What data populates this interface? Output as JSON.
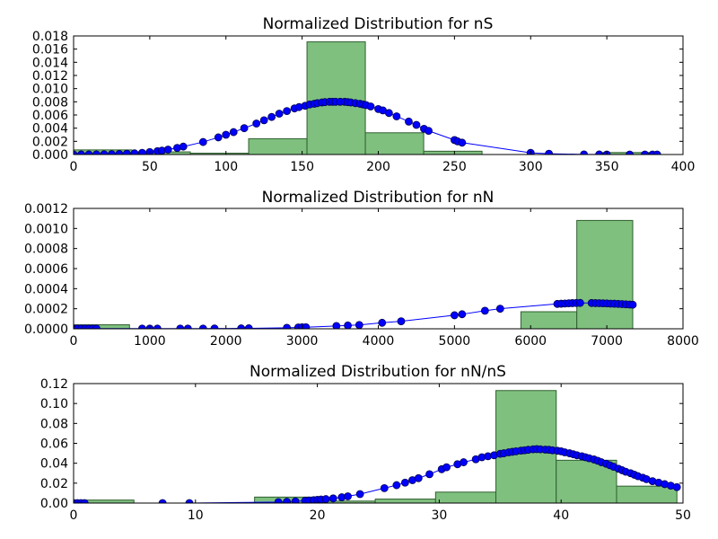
{
  "chart_data": [
    {
      "type": "bar",
      "title": "Normalized Distribution for nS",
      "xlabel": "",
      "ylabel": "",
      "xlim": [
        0,
        400
      ],
      "ylim": [
        0,
        0.018
      ],
      "xticks": [
        0,
        50,
        100,
        150,
        200,
        250,
        300,
        350,
        400
      ],
      "xtick_labels": [
        "0",
        "50",
        "100",
        "150",
        "200",
        "250",
        "300",
        "350",
        "400"
      ],
      "yticks": [
        0,
        0.002,
        0.004,
        0.006,
        0.008,
        0.01,
        0.012,
        0.014,
        0.016,
        0.018
      ],
      "ytick_labels": [
        "0.000",
        "0.002",
        "0.004",
        "0.006",
        "0.008",
        "0.010",
        "0.012",
        "0.014",
        "0.016",
        "0.018"
      ],
      "histogram": {
        "edges": [
          0,
          38.3,
          76.6,
          114.9,
          153.2,
          191.5,
          229.8,
          268.1,
          306.4,
          344.7,
          383
        ],
        "values": [
          0.0007,
          0.0004,
          0.0002,
          0.0024,
          0.0171,
          0.0033,
          0.0005,
          0.0,
          0.0,
          0.0003
        ]
      },
      "curve": {
        "x": [
          0,
          5,
          10,
          15,
          20,
          25,
          30,
          35,
          40,
          45,
          50,
          55,
          58,
          62,
          68,
          72,
          85,
          95,
          100,
          105,
          112,
          120,
          125,
          130,
          135,
          140,
          145,
          148,
          152,
          155,
          158,
          160,
          163,
          165,
          168,
          170,
          172,
          175,
          178,
          180,
          182,
          185,
          188,
          190,
          192,
          195,
          200,
          203,
          207,
          212,
          220,
          225,
          230,
          233,
          250,
          252,
          255,
          300,
          312,
          335,
          345,
          350,
          365,
          375,
          380,
          383
        ],
        "y": [
          1e-05,
          1e-05,
          1e-05,
          2e-05,
          3e-05,
          5e-05,
          8e-05,
          0.00012,
          0.00018,
          0.00026,
          0.00037,
          0.0005,
          0.0006,
          0.00075,
          0.001,
          0.0012,
          0.0019,
          0.0026,
          0.003,
          0.0034,
          0.004,
          0.0047,
          0.0052,
          0.0057,
          0.0062,
          0.0066,
          0.007,
          0.0072,
          0.0074,
          0.0076,
          0.0077,
          0.0078,
          0.0079,
          0.00795,
          0.008,
          0.008,
          0.008,
          0.008,
          0.008,
          0.00795,
          0.0079,
          0.0078,
          0.0077,
          0.0076,
          0.0075,
          0.0073,
          0.0069,
          0.0067,
          0.0063,
          0.0058,
          0.005,
          0.0045,
          0.0039,
          0.0036,
          0.0022,
          0.002,
          0.0018,
          0.00025,
          0.00012,
          2e-05,
          1e-05,
          0.0,
          0.0,
          0.0,
          0.0,
          0.0
        ]
      }
    },
    {
      "type": "bar",
      "title": "Normalized Distribution for nN",
      "xlabel": "",
      "ylabel": "",
      "xlim": [
        0,
        8000
      ],
      "ylim": [
        0,
        0.0012
      ],
      "xticks": [
        0,
        1000,
        2000,
        3000,
        4000,
        5000,
        6000,
        7000,
        8000
      ],
      "xtick_labels": [
        "0",
        "1000",
        "2000",
        "3000",
        "4000",
        "5000",
        "6000",
        "7000",
        "8000"
      ],
      "yticks": [
        0,
        0.0002,
        0.0004,
        0.0006,
        0.0008,
        0.001,
        0.0012
      ],
      "ytick_labels": [
        "0.0000",
        "0.0002",
        "0.0004",
        "0.0006",
        "0.0008",
        "0.0010",
        "0.0012"
      ],
      "histogram": {
        "edges": [
          0,
          734,
          1468,
          2202,
          2936,
          3670,
          4404,
          5138,
          5872,
          6606,
          7340
        ],
        "values": [
          4e-05,
          0.0,
          0.0,
          0.0,
          0.0,
          0.0,
          0.0,
          0.0,
          0.00017,
          0.00108
        ]
      },
      "curve": {
        "x": [
          0,
          50,
          100,
          150,
          200,
          250,
          300,
          900,
          1000,
          1100,
          1400,
          1500,
          1700,
          1850,
          2200,
          2300,
          2800,
          2950,
          3000,
          3050,
          3450,
          3600,
          3750,
          4050,
          4300,
          5000,
          5100,
          5400,
          5600,
          6350,
          6400,
          6450,
          6500,
          6550,
          6600,
          6650,
          6800,
          6850,
          6900,
          6950,
          7000,
          7050,
          7100,
          7150,
          7200,
          7250,
          7300,
          7340
        ],
        "y": [
          2e-06,
          2e-06,
          2e-06,
          2e-06,
          2e-06,
          2e-06,
          2e-06,
          2e-06,
          2e-06,
          2e-06,
          2e-06,
          2e-06,
          2e-06,
          3e-06,
          4e-06,
          5e-06,
          1e-05,
          1.3e-05,
          1.5e-05,
          1.6e-05,
          2.8e-05,
          3.3e-05,
          3.8e-05,
          6e-05,
          7.5e-05,
          0.000135,
          0.000145,
          0.00018,
          0.0002,
          0.000248,
          0.00025,
          0.000252,
          0.000254,
          0.000256,
          0.000257,
          0.000258,
          0.000257,
          0.000256,
          0.000255,
          0.000254,
          0.000253,
          0.000251,
          0.00025,
          0.000248,
          0.000246,
          0.000244,
          0.000242,
          0.00024
        ]
      }
    },
    {
      "type": "bar",
      "title": "Normalized Distribution for nN/nS",
      "xlabel": "",
      "ylabel": "",
      "xlim": [
        0,
        50
      ],
      "ylim": [
        0,
        0.12
      ],
      "xticks": [
        0,
        10,
        20,
        30,
        40,
        50
      ],
      "xtick_labels": [
        "0",
        "10",
        "20",
        "30",
        "40",
        "50"
      ],
      "yticks": [
        0,
        0.02,
        0.04,
        0.06,
        0.08,
        0.1,
        0.12
      ],
      "ytick_labels": [
        "0.00",
        "0.02",
        "0.04",
        "0.06",
        "0.08",
        "0.10",
        "0.12"
      ],
      "histogram": {
        "edges": [
          0,
          4.95,
          9.9,
          14.85,
          19.8,
          24.75,
          29.7,
          34.65,
          39.6,
          44.55,
          49.5
        ],
        "values": [
          0.003,
          0.0,
          0.0,
          0.006,
          0.002,
          0.004,
          0.011,
          0.113,
          0.043,
          0.017
        ]
      },
      "curve": {
        "x": [
          0,
          0.3,
          0.6,
          0.9,
          7.3,
          9.5,
          16.8,
          17.5,
          18.2,
          19.0,
          19.3,
          19.7,
          20.0,
          20.3,
          20.7,
          21.3,
          22.0,
          22.5,
          23.5,
          25.5,
          26.5,
          27.2,
          27.8,
          28.3,
          29.2,
          30.2,
          30.6,
          31.5,
          32.0,
          33.0,
          33.5,
          34.0,
          34.5,
          35.0,
          35.3,
          35.7,
          36.0,
          36.3,
          36.7,
          37.0,
          37.3,
          37.7,
          38.0,
          38.3,
          38.7,
          39.0,
          39.3,
          39.7,
          40.0,
          40.3,
          40.7,
          41.0,
          41.3,
          41.7,
          42.0,
          42.3,
          42.7,
          43.0,
          43.3,
          43.7,
          44.0,
          44.3,
          44.7,
          45.0,
          45.3,
          45.7,
          46.0,
          46.3,
          46.7,
          47.0,
          47.5,
          48.0,
          48.5,
          49.0,
          49.5
        ],
        "y": [
          0.0,
          0.0,
          0.0,
          0.0,
          0.0,
          0.0,
          0.001,
          0.0013,
          0.0017,
          0.0023,
          0.0026,
          0.0029,
          0.0032,
          0.0036,
          0.004,
          0.0047,
          0.0058,
          0.0068,
          0.009,
          0.015,
          0.018,
          0.0205,
          0.023,
          0.025,
          0.029,
          0.034,
          0.036,
          0.039,
          0.041,
          0.044,
          0.046,
          0.047,
          0.048,
          0.0495,
          0.05,
          0.051,
          0.0515,
          0.052,
          0.0527,
          0.053,
          0.0535,
          0.054,
          0.0542,
          0.054,
          0.0537,
          0.0535,
          0.053,
          0.0525,
          0.052,
          0.051,
          0.05,
          0.049,
          0.048,
          0.047,
          0.046,
          0.045,
          0.0438,
          0.0425,
          0.041,
          0.0395,
          0.038,
          0.0365,
          0.0345,
          0.033,
          0.0315,
          0.03,
          0.0285,
          0.027,
          0.0255,
          0.024,
          0.022,
          0.0205,
          0.019,
          0.0175,
          0.016
        ]
      }
    }
  ],
  "colors": {
    "bar_fill": "#7fc07f",
    "bar_stroke": "#2f5f2f",
    "line": "#0000ff",
    "marker_fill": "#0000ff",
    "marker_stroke": "#000055"
  }
}
